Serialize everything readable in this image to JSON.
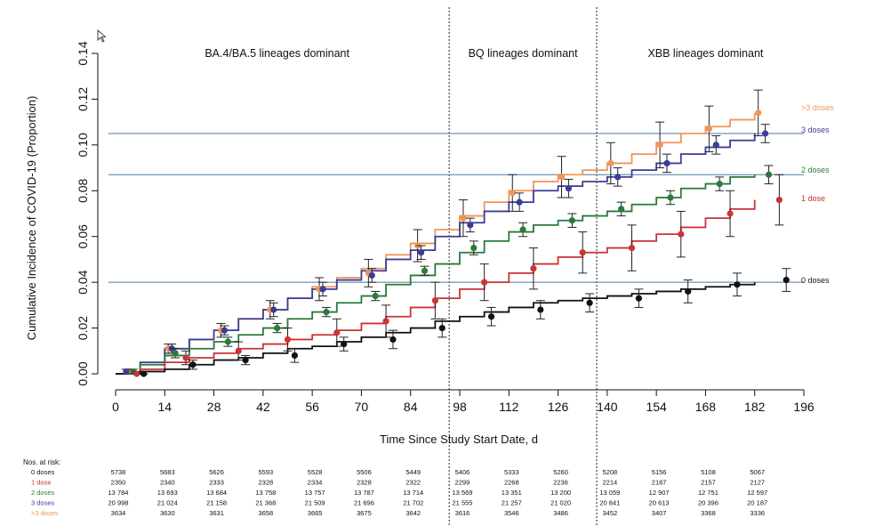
{
  "chart_data": {
    "type": "line",
    "title": "",
    "xlabel": "Time Since Study Start Date, d",
    "ylabel": "Cumulative Incidence of COVID-19 (Proportion)",
    "xlim": [
      0,
      196
    ],
    "ylim": [
      0,
      0.14
    ],
    "x_ticks": [
      0,
      14,
      28,
      42,
      56,
      70,
      84,
      98,
      112,
      126,
      140,
      154,
      168,
      182,
      196
    ],
    "y_ticks": [
      "0.00",
      "0.02",
      "0.04",
      "0.06",
      "0.08",
      "0.10",
      "0.12",
      "0.14"
    ],
    "grid": false,
    "reference_lines_y": [
      0.105,
      0.087,
      0.04
    ],
    "reference_color": "#4a78a8",
    "era_dividers_x": [
      95,
      137
    ],
    "eras": [
      {
        "label": "BA.4/BA.5 lineages dominant",
        "x": 46
      },
      {
        "label": "BQ lineages dominant",
        "x": 116
      },
      {
        "label": "XBB lineages dominant",
        "x": 168
      }
    ],
    "series": [
      {
        "name": ">3 doses",
        "color": "#f0955a",
        "x": [
          0,
          7,
          14,
          21,
          28,
          35,
          42,
          49,
          56,
          63,
          70,
          77,
          84,
          91,
          98,
          105,
          112,
          119,
          126,
          133,
          140,
          147,
          154,
          161,
          168,
          175,
          182
        ],
        "values": [
          0,
          0.004,
          0.011,
          0.015,
          0.019,
          0.024,
          0.028,
          0.033,
          0.038,
          0.042,
          0.046,
          0.052,
          0.057,
          0.063,
          0.069,
          0.075,
          0.08,
          0.084,
          0.087,
          0.089,
          0.092,
          0.096,
          0.101,
          0.105,
          0.108,
          0.111,
          0.114
        ],
        "points": {
          "x": [
            4,
            15,
            30,
            44,
            58,
            72,
            86,
            99,
            113,
            127,
            141,
            155,
            169,
            183
          ],
          "y": [
            0.001,
            0.011,
            0.019,
            0.028,
            0.037,
            0.044,
            0.056,
            0.068,
            0.079,
            0.086,
            0.092,
            0.1,
            0.107,
            0.114
          ],
          "err": [
            0.001,
            0.002,
            0.003,
            0.004,
            0.005,
            0.006,
            0.007,
            0.008,
            0.008,
            0.009,
            0.009,
            0.01,
            0.01,
            0.01
          ]
        }
      },
      {
        "name": "3 doses",
        "color": "#3c3c96",
        "x": [
          0,
          7,
          14,
          21,
          28,
          35,
          42,
          49,
          56,
          63,
          70,
          77,
          84,
          91,
          98,
          105,
          112,
          119,
          126,
          133,
          140,
          147,
          154,
          161,
          168,
          175,
          182
        ],
        "values": [
          0,
          0.005,
          0.011,
          0.015,
          0.019,
          0.024,
          0.028,
          0.033,
          0.037,
          0.041,
          0.045,
          0.05,
          0.054,
          0.06,
          0.066,
          0.071,
          0.075,
          0.08,
          0.082,
          0.084,
          0.086,
          0.089,
          0.092,
          0.096,
          0.099,
          0.102,
          0.105
        ],
        "points": {
          "x": [
            3,
            16,
            31,
            45,
            59,
            73,
            87,
            101,
            115,
            129,
            143,
            157,
            171,
            185
          ],
          "y": [
            0.001,
            0.011,
            0.019,
            0.028,
            0.037,
            0.043,
            0.053,
            0.065,
            0.075,
            0.081,
            0.086,
            0.092,
            0.1,
            0.105
          ],
          "err": [
            0.001,
            0.002,
            0.002,
            0.003,
            0.003,
            0.003,
            0.003,
            0.003,
            0.004,
            0.004,
            0.004,
            0.004,
            0.004,
            0.004
          ]
        }
      },
      {
        "name": "2 doses",
        "color": "#2a7a3a",
        "x": [
          0,
          7,
          14,
          21,
          28,
          35,
          42,
          49,
          56,
          63,
          70,
          77,
          84,
          91,
          98,
          105,
          112,
          119,
          126,
          133,
          140,
          147,
          154,
          161,
          168,
          175,
          182
        ],
        "values": [
          0,
          0.004,
          0.008,
          0.011,
          0.014,
          0.017,
          0.02,
          0.024,
          0.027,
          0.031,
          0.034,
          0.039,
          0.043,
          0.048,
          0.053,
          0.058,
          0.062,
          0.065,
          0.067,
          0.069,
          0.071,
          0.074,
          0.077,
          0.081,
          0.083,
          0.086,
          0.087
        ],
        "points": {
          "x": [
            5,
            17,
            32,
            46,
            60,
            74,
            88,
            102,
            116,
            130,
            144,
            158,
            172,
            186
          ],
          "y": [
            0.001,
            0.009,
            0.014,
            0.02,
            0.027,
            0.034,
            0.045,
            0.055,
            0.063,
            0.067,
            0.072,
            0.077,
            0.083,
            0.087
          ],
          "err": [
            0.001,
            0.002,
            0.002,
            0.002,
            0.002,
            0.002,
            0.002,
            0.003,
            0.003,
            0.003,
            0.003,
            0.003,
            0.003,
            0.004
          ]
        }
      },
      {
        "name": "1 dose",
        "color": "#cc3333",
        "x": [
          0,
          7,
          14,
          21,
          28,
          35,
          42,
          49,
          56,
          63,
          70,
          77,
          84,
          91,
          98,
          105,
          112,
          119,
          126,
          133,
          140,
          147,
          154,
          161,
          168,
          175,
          182
        ],
        "values": [
          0,
          0.002,
          0.005,
          0.007,
          0.009,
          0.011,
          0.013,
          0.015,
          0.017,
          0.019,
          0.022,
          0.025,
          0.029,
          0.033,
          0.037,
          0.04,
          0.044,
          0.048,
          0.051,
          0.053,
          0.055,
          0.058,
          0.061,
          0.064,
          0.068,
          0.072,
          0.076
        ],
        "points": {
          "x": [
            6,
            20,
            35,
            49,
            63,
            77,
            91,
            105,
            119,
            133,
            147,
            161,
            175,
            189
          ],
          "y": [
            0.0,
            0.007,
            0.01,
            0.015,
            0.018,
            0.023,
            0.032,
            0.04,
            0.046,
            0.053,
            0.055,
            0.061,
            0.07,
            0.076
          ],
          "err": [
            0.001,
            0.003,
            0.004,
            0.005,
            0.006,
            0.007,
            0.008,
            0.008,
            0.009,
            0.009,
            0.01,
            0.01,
            0.01,
            0.011
          ]
        }
      },
      {
        "name": "0 doses",
        "color": "#111111",
        "x": [
          0,
          7,
          14,
          21,
          28,
          35,
          42,
          49,
          56,
          63,
          70,
          77,
          84,
          91,
          98,
          105,
          112,
          119,
          126,
          133,
          140,
          147,
          154,
          161,
          168,
          175,
          182
        ],
        "values": [
          0,
          0.001,
          0.002,
          0.004,
          0.006,
          0.007,
          0.009,
          0.011,
          0.012,
          0.014,
          0.016,
          0.018,
          0.02,
          0.023,
          0.025,
          0.027,
          0.029,
          0.031,
          0.032,
          0.033,
          0.034,
          0.035,
          0.036,
          0.037,
          0.038,
          0.039,
          0.04
        ],
        "points": {
          "x": [
            8,
            22,
            37,
            51,
            65,
            79,
            93,
            107,
            121,
            135,
            149,
            163,
            177,
            191
          ],
          "y": [
            0.0,
            0.004,
            0.006,
            0.008,
            0.013,
            0.015,
            0.02,
            0.025,
            0.028,
            0.031,
            0.033,
            0.036,
            0.039,
            0.041
          ],
          "err": [
            0.001,
            0.002,
            0.002,
            0.003,
            0.003,
            0.004,
            0.004,
            0.004,
            0.004,
            0.004,
            0.004,
            0.005,
            0.005,
            0.005
          ]
        }
      }
    ],
    "risk_table": {
      "title": "Nos. at risk:",
      "x": [
        0,
        14,
        28,
        42,
        56,
        70,
        84,
        98,
        112,
        126,
        140,
        154,
        168,
        182
      ],
      "rows": [
        {
          "label": "0 doses",
          "color": "#111111",
          "values": [
            "5738",
            "5683",
            "5626",
            "5593",
            "5528",
            "5506",
            "5449",
            "5406",
            "5333",
            "5260",
            "5208",
            "5156",
            "5108",
            "5067"
          ]
        },
        {
          "label": "1 dose",
          "color": "#cc3333",
          "values": [
            "2350",
            "2340",
            "2333",
            "2328",
            "2334",
            "2328",
            "2322",
            "2299",
            "2268",
            "2236",
            "2214",
            "2187",
            "2157",
            "2127"
          ]
        },
        {
          "label": "2 doses",
          "color": "#2a7a3a",
          "values": [
            "13 784",
            "13 693",
            "13 684",
            "13 758",
            "13 757",
            "13 787",
            "13 714",
            "13 569",
            "13 351",
            "13 200",
            "13 059",
            "12 907",
            "12 751",
            "12 597"
          ]
        },
        {
          "label": "3 doses",
          "color": "#3c3c96",
          "values": [
            "20 998",
            "21 024",
            "21 158",
            "21 368",
            "21 509",
            "21 696",
            "21 702",
            "21 555",
            "21 257",
            "21 020",
            "20 841",
            "20 613",
            "20 396",
            "20 187"
          ]
        },
        {
          "label": ">3 doses",
          "color": "#f0955a",
          "values": [
            "3634",
            "3630",
            "3631",
            "3658",
            "3665",
            "3675",
            "3642",
            "3616",
            "3546",
            "3486",
            "3452",
            "3407",
            "3368",
            "3336"
          ]
        }
      ]
    }
  }
}
